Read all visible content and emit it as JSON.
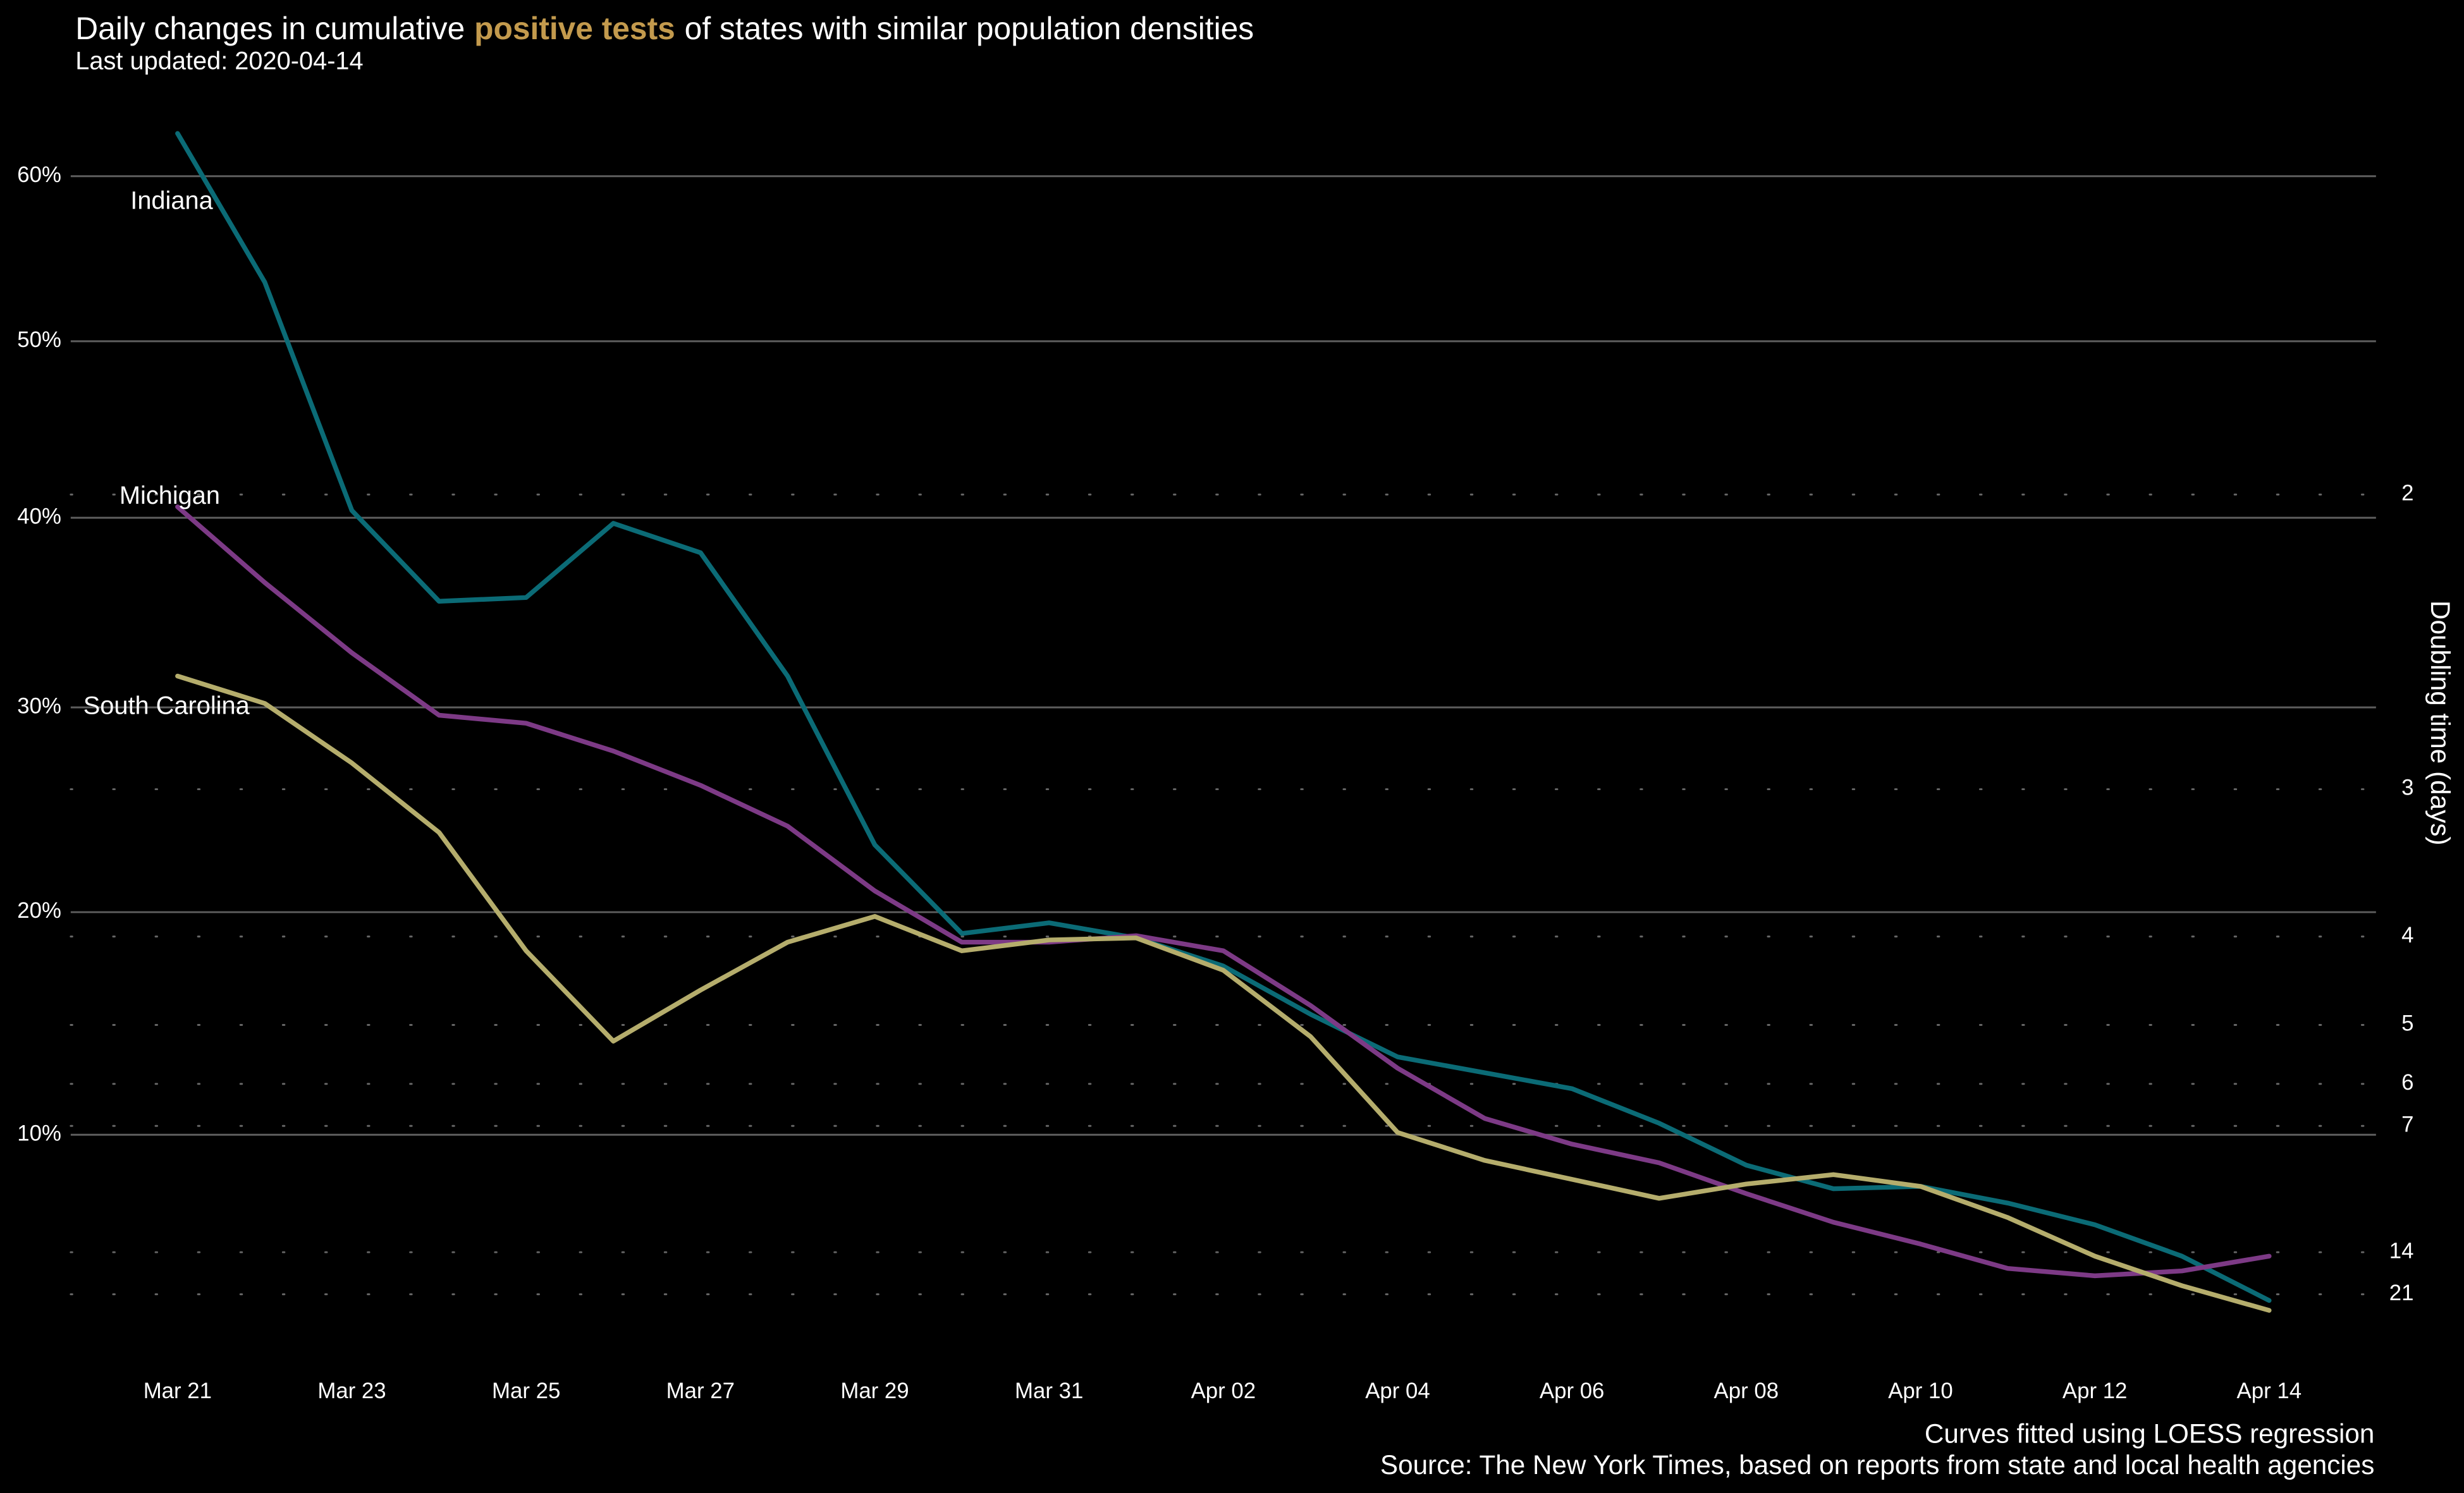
{
  "chart_data": {
    "type": "line",
    "title": {
      "before": "Daily changes in cumulative",
      "highlight": "positive tests",
      "after": "of states with similar population densities",
      "highlight_color": "#c39a4d"
    },
    "subtitle": "Last updated: 2020-04-14",
    "caption": [
      "Curves fitted using LOESS regression",
      "Source: The New York Times, based on reports from state and local health agencies"
    ],
    "y2label": "Doubling time (days)",
    "categories": [
      "Mar 21",
      null,
      "Mar 23",
      null,
      "Mar 25",
      null,
      "Mar 27",
      null,
      "Mar 29",
      null,
      "Mar 31",
      null,
      "Apr 02",
      null,
      "Apr 04",
      null,
      "Apr 06",
      null,
      "Apr 08",
      null,
      "Apr 10",
      null,
      "Apr 12",
      null,
      "Apr 14"
    ],
    "y_scale": "log1p_percent",
    "ylim": [
      1,
      65
    ],
    "yticks": [
      {
        "value": 10,
        "label": "10%"
      },
      {
        "value": 20,
        "label": "20%"
      },
      {
        "value": 30,
        "label": "30%"
      },
      {
        "value": 40,
        "label": "40%"
      },
      {
        "value": 50,
        "label": "50%"
      },
      {
        "value": 60,
        "label": "60%"
      }
    ],
    "y2_scale": "reciprocal",
    "y2lim": [
      69.7,
      1.38
    ],
    "y2ticks": [
      2,
      3,
      4,
      5,
      6,
      7,
      14,
      21
    ],
    "grid": true,
    "series": [
      {
        "name": "Indiana",
        "color": "#0b6b76",
        "values": [
          62.7,
          53.5,
          40.4,
          35.5,
          35.7,
          39.7,
          38.1,
          31.6,
          23.2,
          19.0,
          19.5,
          18.8,
          17.5,
          15.3,
          13.4,
          12.7,
          12.0,
          10.5,
          8.7,
          7.7,
          7.8,
          7.1,
          6.2,
          4.9,
          3.1
        ]
      },
      {
        "name": "Michigan",
        "color": "#7d3a86",
        "values": [
          40.6,
          36.5,
          32.8,
          29.6,
          29.2,
          27.8,
          26.1,
          24.1,
          21.0,
          18.6,
          18.6,
          18.9,
          18.2,
          15.7,
          12.9,
          10.7,
          9.6,
          8.8,
          7.5,
          6.3,
          5.4,
          4.4,
          4.1,
          4.3,
          4.9
        ]
      },
      {
        "name": "South Carolina",
        "color": "#b5ad6c",
        "values": [
          31.6,
          30.2,
          27.2,
          23.8,
          18.2,
          14.1,
          16.4,
          18.6,
          19.8,
          18.2,
          18.7,
          18.8,
          17.3,
          14.3,
          10.1,
          8.9,
          8.1,
          7.3,
          7.9,
          8.3,
          7.8,
          6.5,
          4.9,
          3.7,
          2.7
        ]
      }
    ]
  }
}
